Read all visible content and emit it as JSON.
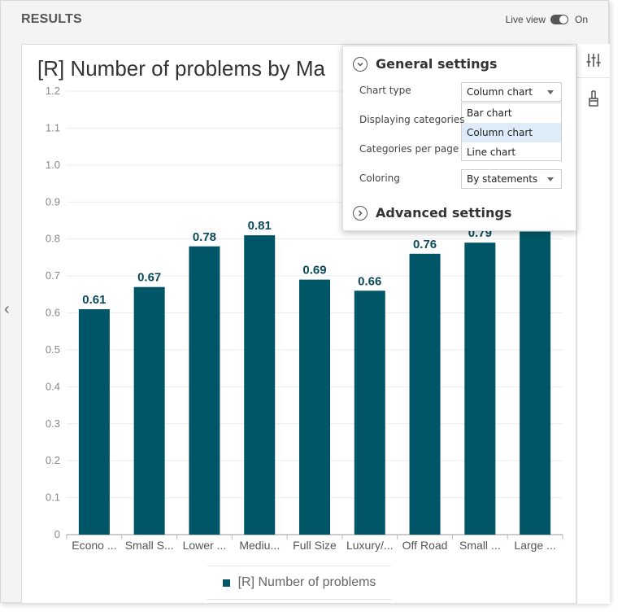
{
  "header": {
    "title": "RESULTS",
    "live_view_label": "Live view",
    "live_view_state": "On"
  },
  "chart_data": {
    "type": "bar",
    "title": "[R] Number of problems by Ma",
    "categories": [
      "Econo ...",
      "Small S...",
      "Lower ...",
      "Mediu...",
      "Full Size",
      "Luxury/...",
      "Off Road",
      "Small ...",
      "Large ..."
    ],
    "series": [
      {
        "name": "[R] Number of problems",
        "values": [
          0.61,
          0.67,
          0.78,
          0.81,
          0.69,
          0.66,
          0.76,
          0.79,
          0.82
        ],
        "data_labels": [
          "0.61",
          "0.67",
          "0.78",
          "0.81",
          "0.69",
          "0.66",
          "0.76",
          "0.79",
          ""
        ]
      }
    ],
    "ylim": [
      0,
      1.2
    ],
    "yticks": [
      "0",
      "0.1",
      "0.2",
      "0.3",
      "0.4",
      "0.5",
      "0.6",
      "0.7",
      "0.8",
      "0.9",
      "1.0",
      "1.1",
      "1.2"
    ],
    "xlabel": "",
    "ylabel": "",
    "grid": true,
    "legend_position": "bottom",
    "bar_color": "#005566"
  },
  "legend": {
    "label": "[R] Number of problems"
  },
  "settings": {
    "general_title": "General settings",
    "advanced_title": "Advanced settings",
    "chart_type_label": "Chart type",
    "chart_type_value": "Column chart",
    "chart_type_options": [
      "Bar chart",
      "Column chart",
      "Line chart"
    ],
    "displaying_categories_label": "Displaying categories",
    "categories_per_page_label": "Categories per page",
    "coloring_label": "Coloring",
    "coloring_value": "By statements"
  },
  "icons": {
    "nav_prev": "chevron-left-icon",
    "sliders": "sliders-icon",
    "brush": "brush-icon"
  }
}
